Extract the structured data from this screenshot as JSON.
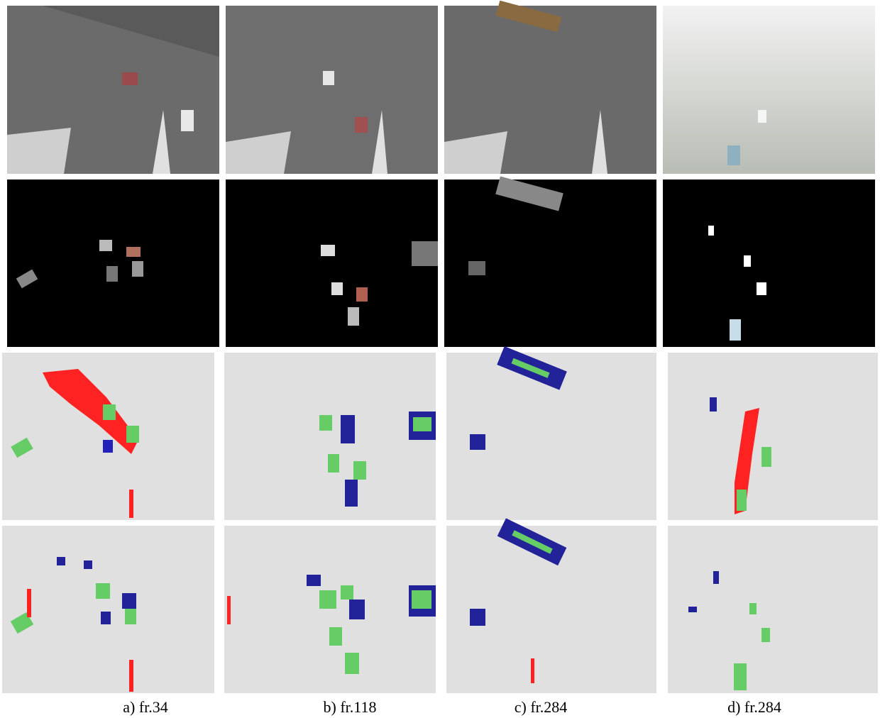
{
  "captions": [
    "a) fr.34",
    "b) fr.118",
    "c) fr.284",
    "d) fr.284"
  ]
}
